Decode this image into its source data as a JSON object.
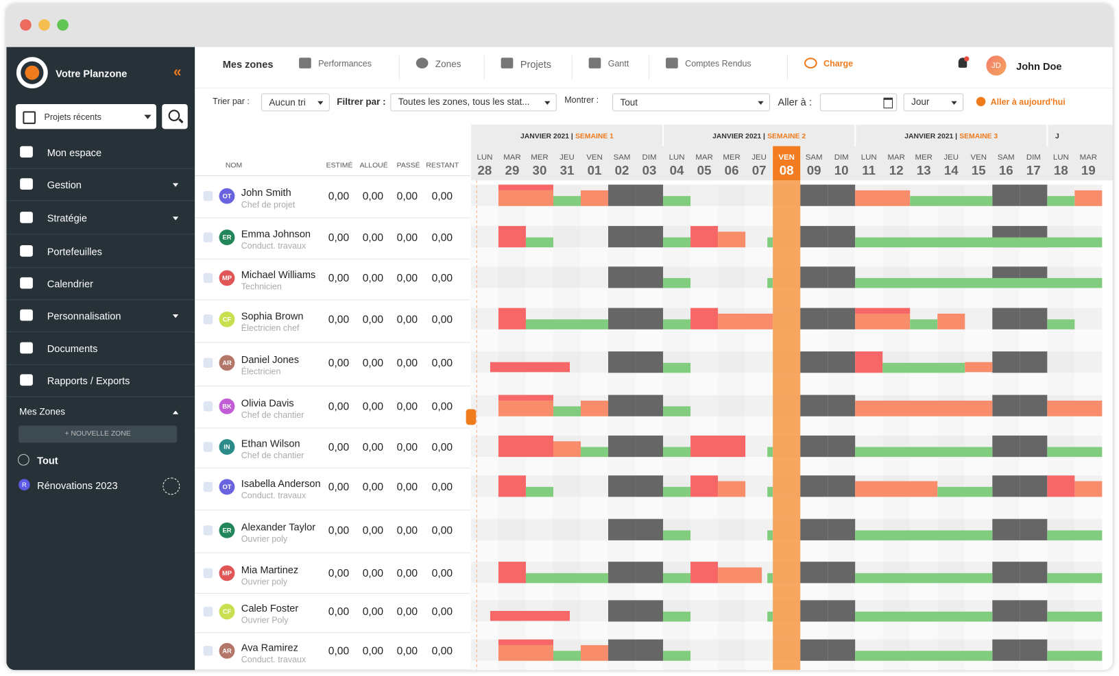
{
  "sidebar": {
    "brand": "Votre Planzone",
    "recent": "Projets récents",
    "nav": [
      "Mon espace",
      "Gestion",
      "Stratégie",
      "Portefeuilles",
      "Calendrier",
      "Personnalisation",
      "Documents",
      "Rapports / Exports"
    ],
    "zones_title": "Mes Zones",
    "new_zone": "+ NOUVELLE ZONE",
    "zones": [
      {
        "badge": null,
        "label": "Tout"
      },
      {
        "badge": "R",
        "label": "Rénovations 2023"
      }
    ]
  },
  "topnav": {
    "tabs": [
      "Mes zones",
      "Performances",
      "Zones",
      "Projets",
      "Gantt",
      "Comptes Rendus",
      "Charge"
    ],
    "user_initials": "JD",
    "user_name": "John Doe"
  },
  "filters": {
    "sort_label": "Trier par :",
    "sort_value": "Aucun tri",
    "filter_label": "Filtrer par :",
    "filter_value": "Toutes les zones, tous les stat...",
    "show_label": "Montrer :",
    "show_value": "Tout",
    "goto_label": "Aller à :",
    "scale_value": "Jour",
    "today_button": "Aller à aujourd'hui"
  },
  "table": {
    "columns": [
      "NOM",
      "ESTIMÉ",
      "ALLOUÉ",
      "PASSÉ",
      "RESTANT"
    ],
    "rows": [
      {
        "initials": "OT",
        "name": "John Smith",
        "role": "Chef de projet",
        "values": [
          "0,00",
          "0,00",
          "0,00",
          "0,00"
        ]
      },
      {
        "initials": "ER",
        "name": "Emma Johnson",
        "role": "Conduct. travaux",
        "values": [
          "0,00",
          "0,00",
          "0,00",
          "0,00"
        ]
      },
      {
        "initials": "MP",
        "name": "Michael Williams",
        "role": "Technicien",
        "values": [
          "0,00",
          "0,00",
          "0,00",
          "0,00"
        ]
      },
      {
        "initials": "CF",
        "name": "Sophia Brown",
        "role": "Électricien chef",
        "values": [
          "0,00",
          "0,00",
          "0,00",
          "0,00"
        ]
      },
      {
        "initials": "AR",
        "name": "Daniel Jones",
        "role": "Électricien",
        "values": [
          "0,00",
          "0,00",
          "0,00",
          "0,00"
        ]
      },
      {
        "initials": "BK",
        "name": "Olivia Davis",
        "role": "Chef de chantier",
        "values": [
          "0,00",
          "0,00",
          "0,00",
          "0,00"
        ]
      },
      {
        "initials": "IN",
        "name": "Ethan Wilson",
        "role": "Chef de chantier",
        "values": [
          "0,00",
          "0,00",
          "0,00",
          "0,00"
        ]
      },
      {
        "initials": "OT",
        "name": "Isabella Anderson",
        "role": "Conduct. travaux",
        "values": [
          "0,00",
          "0,00",
          "0,00",
          "0,00"
        ]
      },
      {
        "initials": "ER",
        "name": "Alexander Taylor",
        "role": "Ouvrier poly",
        "values": [
          "0,00",
          "0,00",
          "0,00",
          "0,00"
        ]
      },
      {
        "initials": "MP",
        "name": "Mia Martinez",
        "role": "Ouvrier poly",
        "values": [
          "0,00",
          "0,00",
          "0,00",
          "0,00"
        ]
      },
      {
        "initials": "CF",
        "name": "Caleb Foster",
        "role": "Ouvrier Poly",
        "values": [
          "0,00",
          "0,00",
          "0,00",
          "0,00"
        ]
      },
      {
        "initials": "AR",
        "name": "Ava Ramirez",
        "role": "Conduct. travaux",
        "values": [
          "0,00",
          "0,00",
          "0,00",
          "0,00"
        ]
      }
    ]
  },
  "calendar": {
    "weeks": [
      {
        "label": "JANVIER 2021 |",
        "week": "SEMAINE 1"
      },
      {
        "label": "JANVIER 2021 |",
        "week": "SEMAINE 2"
      },
      {
        "label": "JANVIER 2021 |",
        "week": "SEMAINE 3"
      },
      {
        "label": "J",
        "week": null
      }
    ],
    "days": [
      {
        "dow": "LUN",
        "num": "28"
      },
      {
        "dow": "MAR",
        "num": "29"
      },
      {
        "dow": "MER",
        "num": "30"
      },
      {
        "dow": "JEU",
        "num": "31"
      },
      {
        "dow": "VEN",
        "num": "01"
      },
      {
        "dow": "SAM",
        "num": "02"
      },
      {
        "dow": "DIM",
        "num": "03"
      },
      {
        "dow": "LUN",
        "num": "04"
      },
      {
        "dow": "MAR",
        "num": "05"
      },
      {
        "dow": "MER",
        "num": "06"
      },
      {
        "dow": "JEU",
        "num": "07"
      },
      {
        "dow": "VEN",
        "num": "08"
      },
      {
        "dow": "SAM",
        "num": "09"
      },
      {
        "dow": "DIM",
        "num": "10"
      },
      {
        "dow": "LUN",
        "num": "11"
      },
      {
        "dow": "MAR",
        "num": "12"
      },
      {
        "dow": "MER",
        "num": "13"
      },
      {
        "dow": "JEU",
        "num": "14"
      },
      {
        "dow": "VEN",
        "num": "15"
      },
      {
        "dow": "SAM",
        "num": "16"
      },
      {
        "dow": "DIM",
        "num": "17"
      },
      {
        "dow": "LUN",
        "num": "18"
      },
      {
        "dow": "MAR",
        "num": "19"
      }
    ]
  }
}
